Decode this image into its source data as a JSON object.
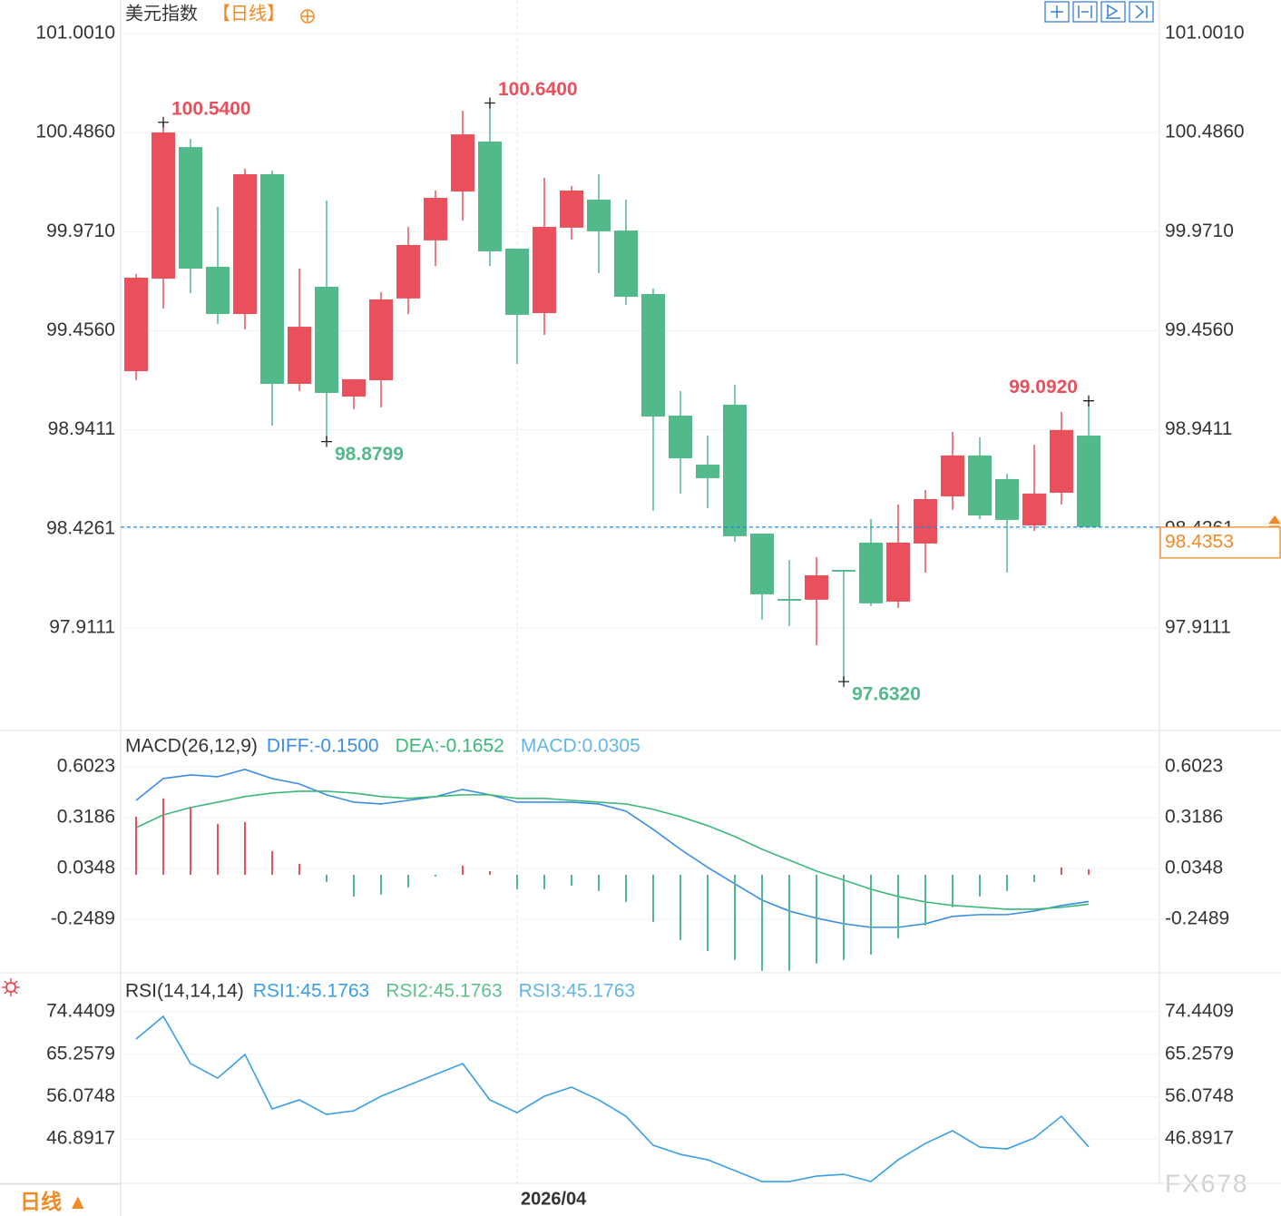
{
  "period_button": "日线 ▲",
  "watermark": "FX678",
  "chart_data": [
    {
      "type": "candlestick",
      "title": "美元指数",
      "subtitle": "【日线】",
      "categories": [
        null,
        null,
        null,
        null,
        null,
        null,
        null,
        null,
        null,
        null,
        null,
        null,
        null,
        null,
        "2026/04",
        null,
        null,
        null,
        null,
        null,
        null,
        null,
        null,
        null,
        null,
        null,
        null,
        null,
        null,
        null,
        null,
        null,
        null,
        null,
        null,
        null
      ],
      "open": [
        99.246,
        99.727,
        100.411,
        99.789,
        99.543,
        100.27,
        99.18,
        99.685,
        99.114,
        99.199,
        99.624,
        99.926,
        100.18,
        100.44,
        99.883,
        99.548,
        99.992,
        100.138,
        99.977,
        99.647,
        99.015,
        98.76,
        99.072,
        98.402,
        98.062,
        98.058,
        98.213,
        98.355,
        98.048,
        98.35,
        98.595,
        98.808,
        98.685,
        98.444,
        98.614,
        98.911
      ],
      "high": [
        99.751,
        100.54,
        100.454,
        100.1,
        100.298,
        100.289,
        99.779,
        100.133,
        99.204,
        99.657,
        99.996,
        100.185,
        100.6,
        100.64,
        99.883,
        100.251,
        100.209,
        100.27,
        100.138,
        99.676,
        99.143,
        98.911,
        99.176,
        98.402,
        98.265,
        98.279,
        98.213,
        98.477,
        98.553,
        98.628,
        98.93,
        98.902,
        98.713,
        98.864,
        99.034,
        99.092
      ],
      "low": [
        99.199,
        99.572,
        99.652,
        99.492,
        99.463,
        98.963,
        99.143,
        98.8799,
        99.048,
        99.058,
        99.543,
        99.793,
        100.029,
        99.793,
        99.284,
        99.435,
        99.93,
        99.756,
        99.591,
        98.52,
        98.61,
        98.534,
        98.36,
        97.954,
        97.921,
        97.822,
        97.632,
        98.025,
        98.015,
        98.199,
        98.525,
        98.477,
        98.199,
        98.416,
        98.553,
        98.4353
      ],
      "close": [
        99.732,
        100.487,
        99.779,
        99.543,
        100.27,
        99.18,
        99.477,
        99.133,
        99.204,
        99.619,
        99.902,
        100.147,
        100.477,
        99.869,
        99.539,
        99.996,
        100.185,
        99.973,
        99.633,
        99.01,
        98.793,
        98.69,
        98.388,
        98.086,
        98.053,
        98.185,
        98.204,
        98.039,
        98.355,
        98.581,
        98.808,
        98.496,
        98.473,
        98.61,
        98.94,
        98.4353
      ],
      "up_color": "#e9505c",
      "down_color": "#52b98a",
      "ylim": [
        97.378,
        101.152
      ],
      "yticks": [
        {
          "value": 101.001,
          "label": "101.0010"
        },
        {
          "value": 100.486,
          "label": "100.4860"
        },
        {
          "value": 99.971,
          "label": "99.9710"
        },
        {
          "value": 99.456,
          "label": "99.4560"
        },
        {
          "value": 98.9411,
          "label": "98.9411"
        },
        {
          "value": 98.4261,
          "label": "98.4261"
        },
        {
          "value": 97.9111,
          "label": "97.9111"
        }
      ],
      "annotations": [
        {
          "value": 100.54,
          "label": "100.5400"
        },
        {
          "value": 100.64,
          "label": "100.6400"
        },
        {
          "value": 98.8799,
          "label": "98.8799"
        },
        {
          "value": 97.632,
          "label": "97.6320"
        },
        {
          "value": 99.092,
          "label": "99.0920"
        }
      ],
      "last_price": {
        "value": 98.4353,
        "label": "98.4353"
      },
      "last_price_color": "#f08a24",
      "last_line_color": "#1e88e5"
    },
    {
      "type": "macd",
      "title": "MACD(26,12,9)",
      "ylim": [
        -0.548,
        0.79
      ],
      "yticks": [
        0.6023,
        0.3186,
        0.0348,
        -0.2489
      ],
      "series": [
        {
          "name": "DIFF:-0.1500",
          "color": "#3a8ee6",
          "style": "line",
          "values": [
            0.415,
            0.537,
            0.557,
            0.547,
            0.588,
            0.537,
            0.507,
            0.446,
            0.405,
            0.395,
            0.415,
            0.436,
            0.476,
            0.446,
            0.405,
            0.405,
            0.405,
            0.395,
            0.355,
            0.253,
            0.142,
            0.041,
            -0.051,
            -0.142,
            -0.203,
            -0.243,
            -0.274,
            -0.294,
            -0.294,
            -0.274,
            -0.233,
            -0.223,
            -0.223,
            -0.203,
            -0.172,
            -0.15
          ]
        },
        {
          "name": "DEA:-0.1652",
          "color": "#3cb878",
          "style": "line",
          "values": [
            0.263,
            0.334,
            0.375,
            0.405,
            0.436,
            0.456,
            0.466,
            0.466,
            0.456,
            0.436,
            0.426,
            0.436,
            0.446,
            0.446,
            0.426,
            0.426,
            0.415,
            0.405,
            0.395,
            0.365,
            0.324,
            0.274,
            0.213,
            0.142,
            0.081,
            0.02,
            -0.03,
            -0.081,
            -0.122,
            -0.152,
            -0.172,
            -0.182,
            -0.193,
            -0.193,
            -0.182,
            -0.1652
          ]
        },
        {
          "name": "MACD:0.0305",
          "color": "#62b5e5",
          "style": "histogram",
          "up_color": "#e9505c",
          "down_color": "#52b98a",
          "values": [
            0.324,
            0.426,
            0.375,
            0.284,
            0.294,
            0.132,
            0.061,
            -0.041,
            -0.122,
            -0.111,
            -0.071,
            -0.01,
            0.051,
            0.02,
            -0.081,
            -0.081,
            -0.061,
            -0.091,
            -0.152,
            -0.263,
            -0.365,
            -0.426,
            -0.476,
            -0.537,
            -0.537,
            -0.496,
            -0.476,
            -0.446,
            -0.355,
            -0.284,
            -0.182,
            -0.122,
            -0.091,
            -0.041,
            0.041,
            0.0305
          ]
        }
      ]
    },
    {
      "type": "line",
      "title": "RSI(14,14,14)",
      "ylim": [
        37.28,
        81.72
      ],
      "yticks": [
        74.4409,
        65.2579,
        56.0748,
        46.8917
      ],
      "series": [
        {
          "name": "RSI1:45.1763",
          "color": "#3a9ee6",
          "values": [
            68.54,
            73.46,
            63.23,
            60.08,
            65.2,
            53.4,
            55.36,
            52.22,
            53.0,
            56.15,
            58.51,
            60.87,
            63.23,
            55.36,
            52.61,
            56.15,
            58.12,
            55.36,
            51.82,
            45.53,
            43.56,
            42.38,
            40.03,
            37.67,
            37.67,
            38.85,
            39.24,
            37.67,
            42.38,
            45.92,
            48.68,
            45.14,
            44.75,
            47.1,
            51.82,
            45.1763
          ]
        },
        {
          "name": "RSI2:45.1763",
          "color": "#5cc28c"
        },
        {
          "name": "RSI3:45.1763",
          "color": "#62b5e5"
        }
      ]
    }
  ]
}
